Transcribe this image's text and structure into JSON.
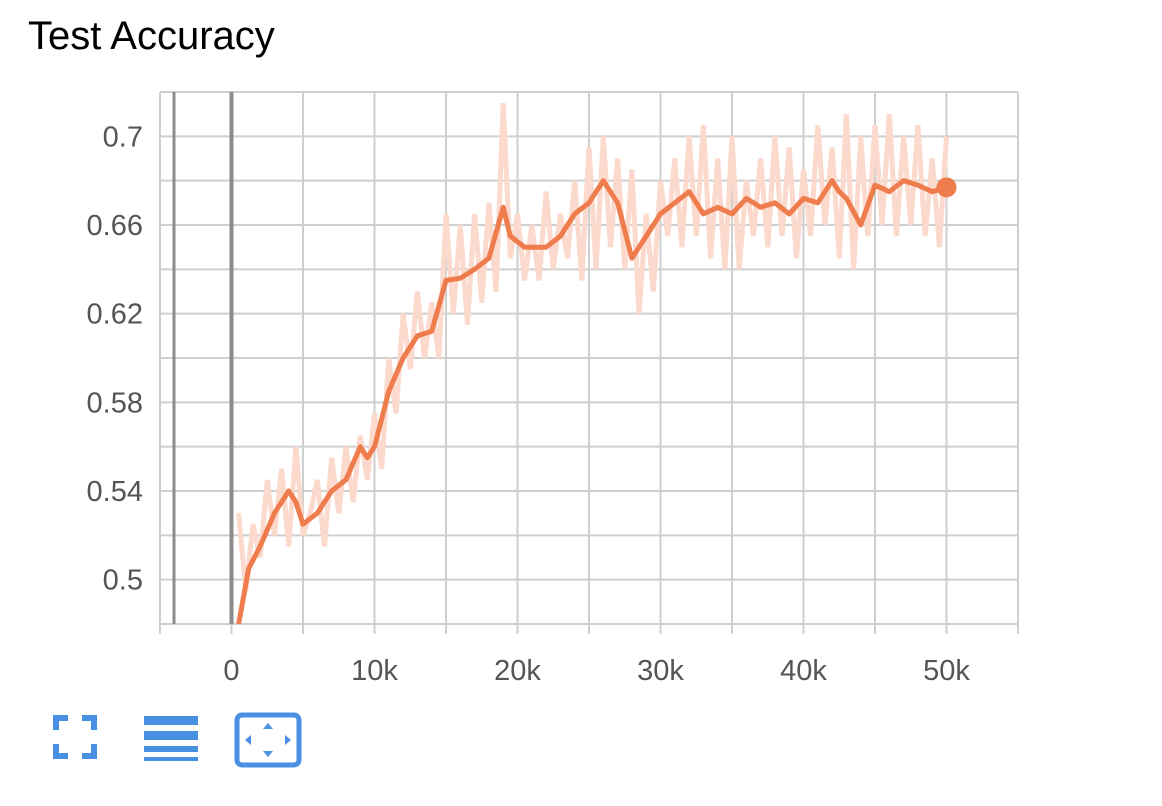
{
  "title": "Test Accuracy",
  "colors": {
    "series": "#ef7c4d",
    "raw": "#fbd9cc",
    "grid": "#cfcfcf",
    "zeroline": "#8c8c8c",
    "toolbar": "#4a90e2"
  },
  "toolbar": {
    "buttons": [
      {
        "name": "fit-domain-icon"
      },
      {
        "name": "toggle-log-scale-icon"
      },
      {
        "name": "expand-chart-icon"
      }
    ]
  },
  "chart_data": {
    "type": "line",
    "title": "Test Accuracy",
    "xlabel": "",
    "ylabel": "",
    "xlim": [
      -5000,
      55000
    ],
    "ylim": [
      0.48,
      0.72
    ],
    "x_ticks": [
      0,
      10000,
      20000,
      30000,
      40000,
      50000
    ],
    "x_tick_labels": [
      "0",
      "10k",
      "20k",
      "30k",
      "40k",
      "50k"
    ],
    "y_ticks": [
      0.5,
      0.54,
      0.58,
      0.62,
      0.66,
      0.7
    ],
    "y_tick_labels": [
      "0.5",
      "0.54",
      "0.58",
      "0.62",
      "0.66",
      "0.7"
    ],
    "grid": true,
    "series": [
      {
        "role": "smoothed",
        "x": [
          500,
          1200,
          2000,
          3000,
          4000,
          4500,
          5000,
          6000,
          7000,
          8000,
          9000,
          9500,
          10000,
          11000,
          12000,
          13000,
          14000,
          15000,
          16000,
          17000,
          18000,
          19000,
          19500,
          20500,
          22000,
          23000,
          24000,
          25000,
          26000,
          27000,
          28000,
          29000,
          30000,
          31000,
          32000,
          33000,
          34000,
          35000,
          36000,
          37000,
          38000,
          39000,
          40000,
          41000,
          42000,
          42500,
          43000,
          44000,
          45000,
          46000,
          47000,
          48000,
          49000,
          50000
        ],
        "y": [
          0.48,
          0.505,
          0.515,
          0.53,
          0.54,
          0.535,
          0.525,
          0.53,
          0.54,
          0.545,
          0.56,
          0.555,
          0.56,
          0.585,
          0.6,
          0.61,
          0.612,
          0.635,
          0.636,
          0.64,
          0.645,
          0.668,
          0.655,
          0.65,
          0.65,
          0.655,
          0.665,
          0.67,
          0.68,
          0.67,
          0.645,
          0.655,
          0.665,
          0.67,
          0.675,
          0.665,
          0.668,
          0.665,
          0.672,
          0.668,
          0.67,
          0.665,
          0.672,
          0.67,
          0.68,
          0.675,
          0.672,
          0.66,
          0.678,
          0.675,
          0.68,
          0.678,
          0.675,
          0.677
        ]
      },
      {
        "role": "raw",
        "x": [
          500,
          1000,
          1500,
          2000,
          2500,
          3000,
          3500,
          4000,
          4500,
          5000,
          5500,
          6000,
          6500,
          7000,
          7500,
          8000,
          8500,
          9000,
          9500,
          10000,
          10500,
          11000,
          11500,
          12000,
          12500,
          13000,
          13500,
          14000,
          14500,
          15000,
          15500,
          16000,
          16500,
          17000,
          17500,
          18000,
          18500,
          19000,
          19500,
          20000,
          20500,
          21000,
          21500,
          22000,
          22500,
          23000,
          23500,
          24000,
          24500,
          25000,
          25500,
          26000,
          26500,
          27000,
          27500,
          28000,
          28500,
          29000,
          29500,
          30000,
          30500,
          31000,
          31500,
          32000,
          32500,
          33000,
          33500,
          34000,
          34500,
          35000,
          35500,
          36000,
          36500,
          37000,
          37500,
          38000,
          38500,
          39000,
          39500,
          40000,
          40500,
          41000,
          41500,
          42000,
          42500,
          43000,
          43500,
          44000,
          44500,
          45000,
          45500,
          46000,
          46500,
          47000,
          47500,
          48000,
          48500,
          49000,
          49500,
          50000
        ],
        "y": [
          0.53,
          0.495,
          0.525,
          0.51,
          0.545,
          0.52,
          0.55,
          0.515,
          0.56,
          0.52,
          0.53,
          0.545,
          0.515,
          0.555,
          0.53,
          0.56,
          0.535,
          0.565,
          0.545,
          0.575,
          0.55,
          0.6,
          0.575,
          0.62,
          0.595,
          0.63,
          0.6,
          0.625,
          0.6,
          0.665,
          0.62,
          0.66,
          0.615,
          0.665,
          0.625,
          0.67,
          0.63,
          0.715,
          0.645,
          0.665,
          0.635,
          0.66,
          0.635,
          0.675,
          0.64,
          0.665,
          0.645,
          0.68,
          0.635,
          0.695,
          0.64,
          0.7,
          0.65,
          0.69,
          0.64,
          0.685,
          0.62,
          0.665,
          0.63,
          0.68,
          0.655,
          0.69,
          0.65,
          0.7,
          0.655,
          0.705,
          0.645,
          0.69,
          0.64,
          0.7,
          0.64,
          0.68,
          0.655,
          0.69,
          0.65,
          0.7,
          0.655,
          0.695,
          0.645,
          0.685,
          0.655,
          0.705,
          0.66,
          0.695,
          0.645,
          0.71,
          0.64,
          0.7,
          0.655,
          0.705,
          0.66,
          0.71,
          0.655,
          0.7,
          0.66,
          0.705,
          0.655,
          0.69,
          0.65,
          0.7
        ]
      }
    ]
  }
}
